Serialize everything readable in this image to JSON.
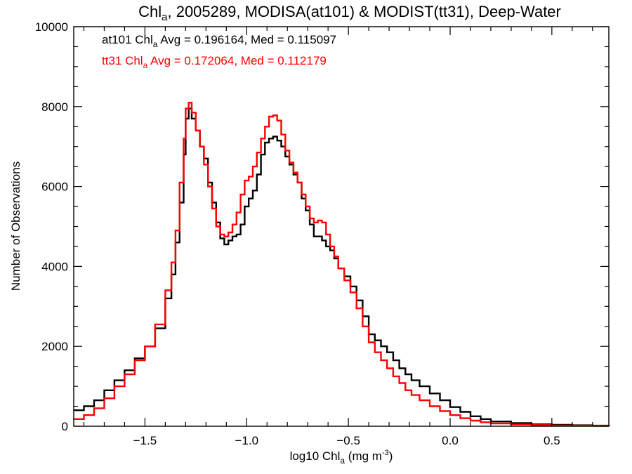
{
  "colors": {
    "at101": "#000000",
    "tt31": "#ff0000",
    "axis": "#000000",
    "background": "#ffffff"
  },
  "chart_data": {
    "type": "line",
    "style": "histogram-step",
    "title": {
      "base": "Chl",
      "sub": "a",
      "rest": ", 2005289, MODISA(at101) & MODIST(tt31), Deep-Water"
    },
    "xlabel": {
      "pre": "log10 Chl",
      "sub": "a",
      "post": " (mg m",
      "sup": "-3",
      "end": ")"
    },
    "ylabel": "Number of Observations",
    "xlim": [
      -1.85,
      0.78
    ],
    "ylim": [
      0,
      10000
    ],
    "xticks": [
      -1.5,
      -1.0,
      -0.5,
      0.0,
      0.5
    ],
    "xtick_labels": [
      "−1.5",
      "−1.0",
      "−0.5",
      "0.0",
      "0.5"
    ],
    "yticks": [
      0,
      2000,
      4000,
      6000,
      8000,
      10000
    ],
    "ytick_labels": [
      "0",
      "2000",
      "4000",
      "6000",
      "8000",
      "10000"
    ],
    "grid": false,
    "legend": [
      {
        "prefix": "at101 Chl",
        "sub": "a",
        "suffix": " Avg = 0.196164, Med = 0.115097"
      },
      {
        "prefix": "tt31 Chl",
        "sub": "a",
        "suffix": " Avg = 0.172064, Med = 0.112179"
      }
    ],
    "series": [
      {
        "id": "at101",
        "color": "#000000",
        "points": [
          [
            -1.85,
            400
          ],
          [
            -1.8,
            500
          ],
          [
            -1.75,
            650
          ],
          [
            -1.7,
            900
          ],
          [
            -1.65,
            1150
          ],
          [
            -1.6,
            1400
          ],
          [
            -1.55,
            1700
          ],
          [
            -1.5,
            2000
          ],
          [
            -1.45,
            2450
          ],
          [
            -1.4,
            3200
          ],
          [
            -1.37,
            3800
          ],
          [
            -1.35,
            4600
          ],
          [
            -1.33,
            5600
          ],
          [
            -1.31,
            6800
          ],
          [
            -1.3,
            7700
          ],
          [
            -1.285,
            7950
          ],
          [
            -1.27,
            7700
          ],
          [
            -1.25,
            7400
          ],
          [
            -1.23,
            7000
          ],
          [
            -1.21,
            6700
          ],
          [
            -1.19,
            6100
          ],
          [
            -1.17,
            5600
          ],
          [
            -1.15,
            5100
          ],
          [
            -1.13,
            4700
          ],
          [
            -1.11,
            4550
          ],
          [
            -1.09,
            4650
          ],
          [
            -1.07,
            4750
          ],
          [
            -1.05,
            4800
          ],
          [
            -1.03,
            5050
          ],
          [
            -1.01,
            5500
          ],
          [
            -0.99,
            5700
          ],
          [
            -0.97,
            5900
          ],
          [
            -0.95,
            6300
          ],
          [
            -0.93,
            6800
          ],
          [
            -0.91,
            7100
          ],
          [
            -0.89,
            7200
          ],
          [
            -0.87,
            7250
          ],
          [
            -0.85,
            7150
          ],
          [
            -0.83,
            7000
          ],
          [
            -0.81,
            6750
          ],
          [
            -0.79,
            6550
          ],
          [
            -0.77,
            6300
          ],
          [
            -0.75,
            6100
          ],
          [
            -0.73,
            5700
          ],
          [
            -0.71,
            5400
          ],
          [
            -0.69,
            5050
          ],
          [
            -0.67,
            4750
          ],
          [
            -0.65,
            4750
          ],
          [
            -0.63,
            4650
          ],
          [
            -0.61,
            4500
          ],
          [
            -0.59,
            4400
          ],
          [
            -0.57,
            4200
          ],
          [
            -0.55,
            3950
          ],
          [
            -0.52,
            3750
          ],
          [
            -0.49,
            3500
          ],
          [
            -0.46,
            3150
          ],
          [
            -0.43,
            2750
          ],
          [
            -0.4,
            2300
          ],
          [
            -0.37,
            2150
          ],
          [
            -0.34,
            2000
          ],
          [
            -0.31,
            1850
          ],
          [
            -0.28,
            1650
          ],
          [
            -0.25,
            1450
          ],
          [
            -0.22,
            1300
          ],
          [
            -0.19,
            1150
          ],
          [
            -0.15,
            1000
          ],
          [
            -0.1,
            820
          ],
          [
            -0.05,
            650
          ],
          [
            0.0,
            480
          ],
          [
            0.05,
            360
          ],
          [
            0.1,
            250
          ],
          [
            0.15,
            180
          ],
          [
            0.2,
            120
          ],
          [
            0.3,
            80
          ],
          [
            0.4,
            50
          ],
          [
            0.5,
            35
          ],
          [
            0.6,
            25
          ],
          [
            0.7,
            15
          ],
          [
            0.78,
            10
          ]
        ]
      },
      {
        "id": "tt31",
        "color": "#ff0000",
        "points": [
          [
            -1.85,
            180
          ],
          [
            -1.8,
            280
          ],
          [
            -1.75,
            450
          ],
          [
            -1.7,
            700
          ],
          [
            -1.65,
            1000
          ],
          [
            -1.6,
            1300
          ],
          [
            -1.55,
            1650
          ],
          [
            -1.5,
            2000
          ],
          [
            -1.45,
            2550
          ],
          [
            -1.4,
            3400
          ],
          [
            -1.37,
            4100
          ],
          [
            -1.35,
            4900
          ],
          [
            -1.33,
            6100
          ],
          [
            -1.31,
            7200
          ],
          [
            -1.3,
            7950
          ],
          [
            -1.285,
            8100
          ],
          [
            -1.27,
            7850
          ],
          [
            -1.25,
            7400
          ],
          [
            -1.23,
            7000
          ],
          [
            -1.21,
            6550
          ],
          [
            -1.19,
            6000
          ],
          [
            -1.17,
            5450
          ],
          [
            -1.15,
            5000
          ],
          [
            -1.13,
            4800
          ],
          [
            -1.11,
            4750
          ],
          [
            -1.09,
            4850
          ],
          [
            -1.07,
            5050
          ],
          [
            -1.05,
            5350
          ],
          [
            -1.03,
            5800
          ],
          [
            -1.01,
            6150
          ],
          [
            -0.99,
            6250
          ],
          [
            -0.97,
            6500
          ],
          [
            -0.95,
            6850
          ],
          [
            -0.93,
            7200
          ],
          [
            -0.91,
            7500
          ],
          [
            -0.89,
            7750
          ],
          [
            -0.87,
            7780
          ],
          [
            -0.85,
            7650
          ],
          [
            -0.83,
            7300
          ],
          [
            -0.81,
            6900
          ],
          [
            -0.79,
            6600
          ],
          [
            -0.77,
            6350
          ],
          [
            -0.75,
            6100
          ],
          [
            -0.73,
            5800
          ],
          [
            -0.71,
            5500
          ],
          [
            -0.69,
            5200
          ],
          [
            -0.67,
            5100
          ],
          [
            -0.65,
            5150
          ],
          [
            -0.63,
            5100
          ],
          [
            -0.61,
            4800
          ],
          [
            -0.59,
            4500
          ],
          [
            -0.57,
            4250
          ],
          [
            -0.55,
            3950
          ],
          [
            -0.52,
            3650
          ],
          [
            -0.49,
            3350
          ],
          [
            -0.46,
            2950
          ],
          [
            -0.43,
            2500
          ],
          [
            -0.4,
            2100
          ],
          [
            -0.37,
            1850
          ],
          [
            -0.34,
            1650
          ],
          [
            -0.31,
            1450
          ],
          [
            -0.28,
            1250
          ],
          [
            -0.25,
            1080
          ],
          [
            -0.22,
            900
          ],
          [
            -0.19,
            780
          ],
          [
            -0.15,
            650
          ],
          [
            -0.1,
            500
          ],
          [
            -0.05,
            380
          ],
          [
            0.0,
            280
          ],
          [
            0.05,
            200
          ],
          [
            0.1,
            140
          ],
          [
            0.15,
            100
          ],
          [
            0.2,
            70
          ],
          [
            0.3,
            45
          ],
          [
            0.4,
            30
          ],
          [
            0.5,
            20
          ],
          [
            0.6,
            15
          ],
          [
            0.7,
            10
          ],
          [
            0.78,
            5
          ]
        ]
      }
    ]
  }
}
